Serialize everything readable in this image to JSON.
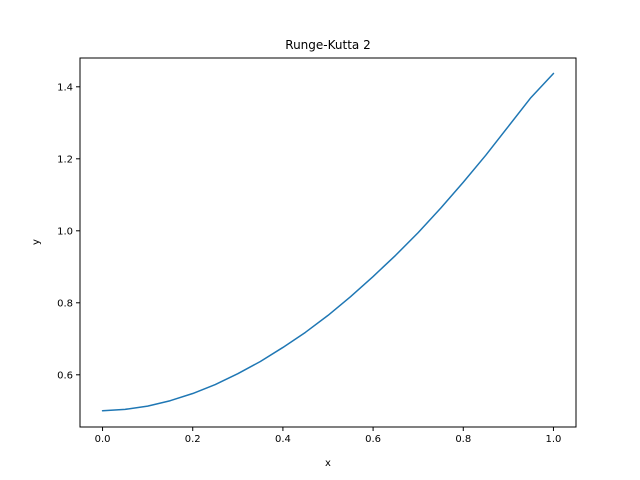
{
  "chart_data": {
    "type": "line",
    "title": "Runge-Kutta 2",
    "xlabel": "x",
    "ylabel": "y",
    "xlim": [
      -0.05,
      1.05
    ],
    "ylim": [
      0.455,
      1.48
    ],
    "xticks": [
      0.0,
      0.2,
      0.4,
      0.6,
      0.8,
      1.0
    ],
    "xtick_labels": [
      "0.0",
      "0.2",
      "0.4",
      "0.6",
      "0.8",
      "1.0"
    ],
    "yticks": [
      0.6,
      0.8,
      1.0,
      1.2,
      1.4
    ],
    "ytick_labels": [
      "0.6",
      "0.8",
      "1.0",
      "1.2",
      "1.4"
    ],
    "grid": false,
    "series": [
      {
        "name": "y",
        "color": "#1f77b4",
        "x": [
          0.0,
          0.05,
          0.1,
          0.15,
          0.2,
          0.25,
          0.3,
          0.35,
          0.4,
          0.45,
          0.5,
          0.55,
          0.6,
          0.65,
          0.7,
          0.75,
          0.8,
          0.85,
          0.9,
          0.95,
          1.0
        ],
        "y": [
          0.5,
          0.504,
          0.513,
          0.528,
          0.548,
          0.573,
          0.603,
          0.637,
          0.676,
          0.718,
          0.765,
          0.817,
          0.873,
          0.932,
          0.995,
          1.063,
          1.135,
          1.21,
          1.29,
          1.37,
          1.437
        ]
      }
    ]
  }
}
